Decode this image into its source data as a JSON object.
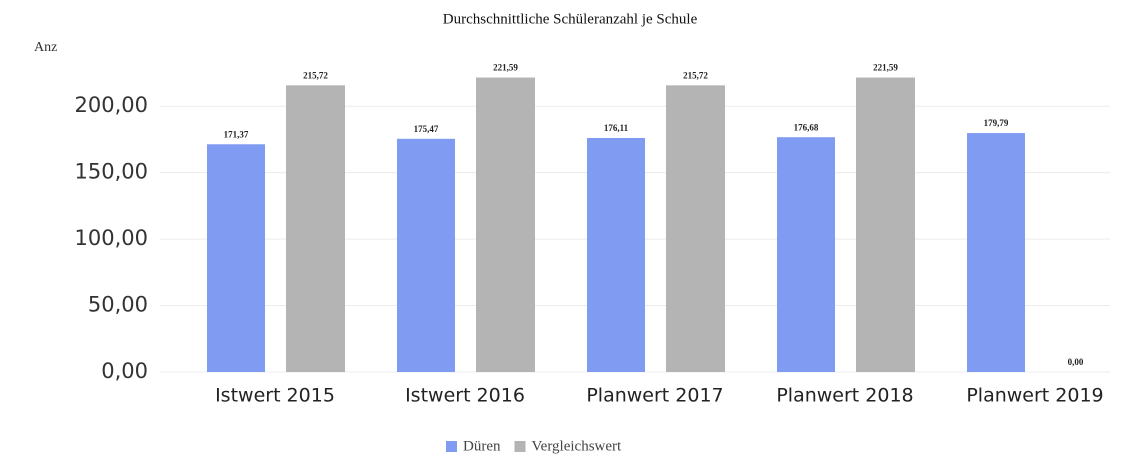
{
  "chart_data": {
    "type": "bar",
    "title": "Durchschnittliche Schüleranzahl je Schule",
    "y_label": "Anz",
    "categories": [
      "Istwert 2015",
      "Istwert 2016",
      "Planwert 2017",
      "Planwert 2018",
      "Planwert 2019"
    ],
    "series": [
      {
        "name": "Düren",
        "color": "#7f9bf2",
        "values": [
          171.37,
          175.47,
          176.11,
          176.68,
          179.79
        ],
        "value_labels": [
          "171,37",
          "175,47",
          "176,11",
          "176,68",
          "179,79"
        ]
      },
      {
        "name": "Vergleichswert",
        "color": "#b4b4b4",
        "values": [
          215.72,
          221.59,
          215.72,
          221.59,
          0.0
        ],
        "value_labels": [
          "215,72",
          "221,59",
          "215,72",
          "221,59",
          "0,00"
        ]
      }
    ],
    "ylim": [
      0,
      225
    ],
    "yticks": [
      {
        "value": 0,
        "label": "0,00"
      },
      {
        "value": 50,
        "label": "50,00"
      },
      {
        "value": 100,
        "label": "100,00"
      },
      {
        "value": 150,
        "label": "150,00"
      },
      {
        "value": 200,
        "label": "200,00"
      }
    ],
    "grid": true
  }
}
